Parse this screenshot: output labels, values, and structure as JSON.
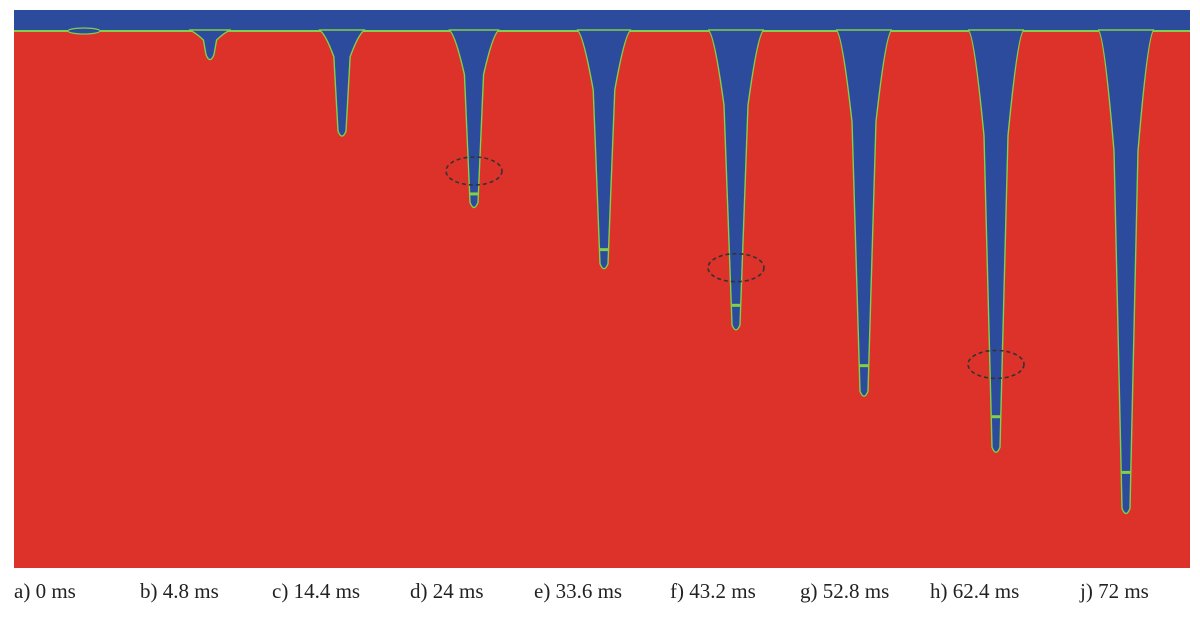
{
  "frames": [
    {
      "label": "a) 0 ms",
      "penetration": 0.0,
      "pinch_ring": false
    },
    {
      "label": "b) 4.8 ms",
      "penetration": 0.06,
      "pinch_ring": false
    },
    {
      "label": "c) 14.4 ms",
      "penetration": 0.21,
      "pinch_ring": false
    },
    {
      "label": "d) 24 ms",
      "penetration": 0.35,
      "pinch_ring": true
    },
    {
      "label": "e) 33.6 ms",
      "penetration": 0.47,
      "pinch_ring": false
    },
    {
      "label": "f) 43.2 ms",
      "penetration": 0.59,
      "pinch_ring": true
    },
    {
      "label": "g) 52.8 ms",
      "penetration": 0.72,
      "pinch_ring": false
    },
    {
      "label": "h) 62.4 ms",
      "penetration": 0.83,
      "pinch_ring": true
    },
    {
      "label": "j) 72 ms",
      "penetration": 0.95,
      "pinch_ring": false
    }
  ],
  "colors": {
    "liquid": "#dc3229",
    "gas": "#2d4b9c",
    "interface": "#7fd04a",
    "ring": "#333333"
  }
}
